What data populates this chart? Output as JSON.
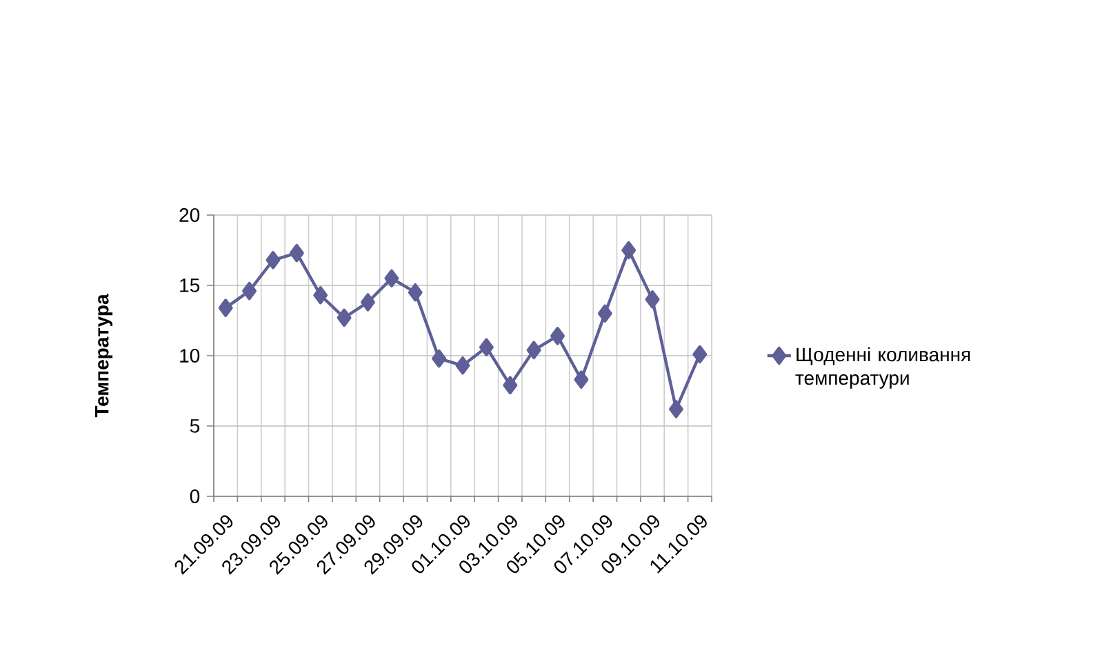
{
  "chart_data": {
    "type": "line",
    "ylabel": "Температура",
    "categories": [
      "21.09.09",
      null,
      "23.09.09",
      null,
      "25.09.09",
      null,
      "27.09.09",
      null,
      "29.09.09",
      null,
      "01.10.09",
      null,
      "03.10.09",
      null,
      "05.10.09",
      null,
      "07.10.09",
      null,
      "09.10.09",
      null,
      "11.10.09"
    ],
    "series": [
      {
        "name": "Щоденні коливання температури",
        "color": "#5f5f98",
        "values": [
          13.4,
          14.6,
          16.8,
          17.3,
          14.3,
          12.7,
          13.8,
          15.5,
          14.5,
          9.8,
          9.3,
          10.6,
          7.9,
          10.4,
          11.4,
          8.3,
          13.0,
          17.5,
          14.0,
          6.2,
          10.1
        ]
      }
    ],
    "ylim": [
      0,
      20
    ],
    "yticks": [
      0,
      5,
      10,
      15,
      20
    ],
    "grid": true,
    "legend": "right",
    "marker": "diamond",
    "line_style": "solid"
  }
}
